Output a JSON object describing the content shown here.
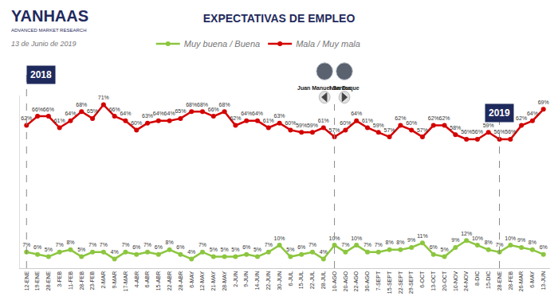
{
  "chart_data": {
    "type": "line",
    "title": "EXPECTATIVAS DE EMPLEO",
    "subtitle": "13 de Junio de 2019",
    "logo": {
      "name": "YANHAAS",
      "tagline": "ADVANCED MARKET RESEARCH"
    },
    "categories": [
      "12-ENE",
      "19-ENE",
      "28-ENE",
      "3-FEB",
      "11-FEB",
      "28-FEB",
      "23-FEB",
      "2-MAR",
      "9-MAR",
      "17-MAR",
      "4-ABR",
      "6-ABR",
      "15-ABR",
      "22-ABR",
      "28-ABR",
      "6-MAY",
      "12-MAY",
      "21-MAY",
      "28-MAY",
      "2-JUN",
      "9-JUN",
      "14-JUN",
      "22-JUN",
      "30-JUN",
      "6-JUL",
      "15-JUL",
      "22-JUL",
      "28-JUL",
      "10-AGO",
      "20-AGO",
      "22-AGO",
      "30-AGO",
      "7-SEPT",
      "15-SEPT",
      "22-SEPT",
      "29-SEPT",
      "6-OCT",
      "13-OCT",
      "20-OCT",
      "10-NOV",
      "24-NOV",
      "8-DIC",
      "15-DIC",
      "28-ENE",
      "28-FEB",
      "26-MAR",
      "6-MAY",
      "13-JUN"
    ],
    "series": [
      {
        "name": "Muy buena / Buena",
        "color": "#8cc63f",
        "marker": "circle",
        "values": [
          7,
          6,
          5,
          7,
          8,
          5,
          7,
          7,
          4,
          7,
          6,
          7,
          6,
          8,
          6,
          4,
          7,
          5,
          5,
          5,
          6,
          5,
          7,
          10,
          5,
          6,
          7,
          4,
          10,
          7,
          10,
          7,
          7,
          8,
          8,
          9,
          11,
          6,
          5,
          9,
          12,
          10,
          8,
          7,
          10,
          9,
          8,
          6
        ],
        "value_labels": [
          "7%",
          "6%",
          "5%",
          "7%",
          "8%",
          "5%",
          "7%",
          "7%",
          "4%",
          "7%",
          "6%",
          "7%",
          "6%",
          "8%",
          "6%",
          "4%",
          "7%",
          "5%",
          "5%",
          "5%",
          "6%",
          "5%",
          "7%",
          "10%",
          "5%",
          "6%",
          "7%",
          "4%",
          "10%",
          "7%",
          "10%",
          "7%",
          "7%",
          "8%",
          "8%",
          "9%",
          "11%",
          "6%",
          "5%",
          "9%",
          "12%",
          "10%",
          "8%",
          "7%",
          "10%",
          "9%",
          "8%",
          "6%"
        ]
      },
      {
        "name": "Mala / Muy mala",
        "color": "#d40000",
        "marker": "circle",
        "values": [
          62,
          66,
          66,
          61,
          64,
          68,
          65,
          71,
          66,
          64,
          60,
          63,
          64,
          64,
          65,
          68,
          68,
          66,
          68,
          62,
          64,
          64,
          61,
          63,
          60,
          59,
          59,
          61,
          57,
          60,
          64,
          61,
          59,
          57,
          62,
          60,
          57,
          62,
          62,
          58,
          56,
          56,
          59,
          56,
          56,
          62,
          64,
          69
        ],
        "value_labels": [
          "62%",
          "66%",
          "66%",
          "61%",
          "64%",
          "68%",
          "65%",
          "71%",
          "66%",
          "64%",
          "60%",
          "63%",
          "64%",
          "64%",
          "65%",
          "68%",
          "68%",
          "66%",
          "68%",
          "62%",
          "64%",
          "64%",
          "61%",
          "63%",
          "60%",
          "59%",
          "59%",
          "61%",
          "57%",
          "60%",
          "64%",
          "61%",
          "59%",
          "57%",
          "62%",
          "60%",
          "57%",
          "62%",
          "62%",
          "58%",
          "56%",
          "56%",
          "59%",
          "56%",
          "56%",
          "62%",
          "64%",
          "69%"
        ]
      }
    ],
    "ylim": [
      0,
      75
    ],
    "yticks": [],
    "grid": false,
    "tick_labels": "x",
    "data_labels": true,
    "legend": "top",
    "periods": [
      {
        "label": "2018",
        "x": 0
      },
      {
        "label": "2019",
        "x": 43
      }
    ],
    "presidents": [
      {
        "name": "Juan Manuel Santos",
        "x": 28
      },
      {
        "name": "Iván Duque",
        "x": 28
      }
    ]
  }
}
